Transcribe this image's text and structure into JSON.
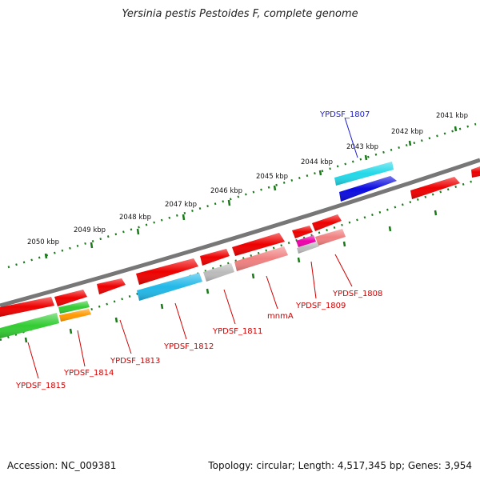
{
  "title": "Yersinia pestis Pestoides F, complete genome",
  "footer": {
    "accession": "Accession: NC_009381",
    "summary": "Topology: circular; Length: 4,517,345 bp; Genes: 3,954"
  },
  "ticks": [
    {
      "label": "2041 kbp"
    },
    {
      "label": "2042 kbp"
    },
    {
      "label": "2043 kbp"
    },
    {
      "label": "2044 kbp"
    },
    {
      "label": "2045 kbp"
    },
    {
      "label": "2046 kbp"
    },
    {
      "label": "2047 kbp"
    },
    {
      "label": "2048 kbp"
    },
    {
      "label": "2049 kbp"
    },
    {
      "label": "2050 kbp"
    }
  ],
  "gene_labels": [
    {
      "text": "YPDSF_1807",
      "color": "#1a1acc"
    },
    {
      "text": "YPDSF_1808",
      "color": "#d00000"
    },
    {
      "text": "YPDSF_1809",
      "color": "#d00000"
    },
    {
      "text": "mnmA",
      "color": "#d00000"
    },
    {
      "text": "YPDSF_1811",
      "color": "#d00000"
    },
    {
      "text": "YPDSF_1812",
      "color": "#d00000"
    },
    {
      "text": "YPDSF_1813",
      "color": "#d00000"
    },
    {
      "text": "YPDSF_1814",
      "color": "#d00000"
    },
    {
      "text": "YPDSF_1815",
      "color": "#d00000"
    }
  ],
  "colors": {
    "backbone": "#777777",
    "tick": "#1a7a1a",
    "gene_red": "#ee0000",
    "gene_pink": "#f08080",
    "gene_gray": "#bbbbbb",
    "gene_cyan": "#22d8e8",
    "gene_blue": "#0a0ae0",
    "gene_green": "#33cc33",
    "gene_orange": "#ff9900",
    "gene_magenta": "#ee00aa",
    "gene_skyblue": "#22b8e8"
  }
}
